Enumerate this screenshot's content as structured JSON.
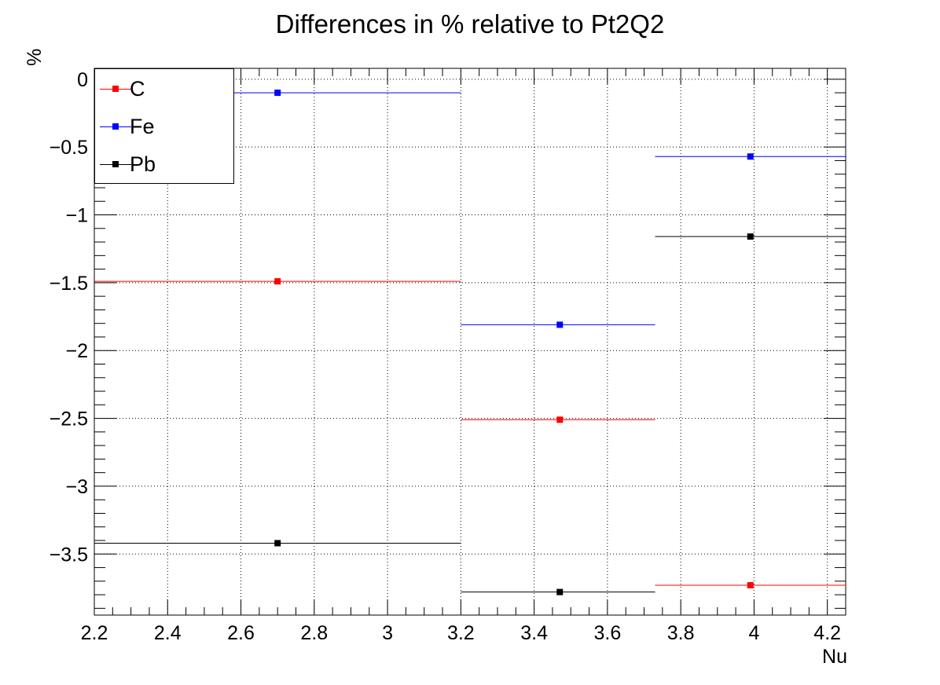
{
  "chart_data": {
    "type": "scatter",
    "title": "Differences in % relative to Pt2Q2",
    "xlabel": "Nu",
    "ylabel": "%",
    "xlim": [
      2.2,
      4.25
    ],
    "ylim": [
      -3.95,
      0.08
    ],
    "x_ticks": [
      "2.2",
      "2.4",
      "2.6",
      "2.8",
      "3",
      "3.2",
      "3.4",
      "3.6",
      "3.8",
      "4",
      "4.2"
    ],
    "y_ticks": [
      "0",
      "−0.5",
      "−1",
      "−1.5",
      "−2",
      "−2.5",
      "−3",
      "−3.5"
    ],
    "grid": true,
    "legend_position": "top-left",
    "bins": [
      {
        "low": 2.2,
        "high": 3.2,
        "center": 2.7
      },
      {
        "low": 3.2,
        "high": 3.73,
        "center": 3.47
      },
      {
        "low": 3.73,
        "high": 4.25,
        "center": 3.99
      }
    ],
    "series": [
      {
        "name": "C",
        "color": "#ff0000",
        "values": [
          -1.49,
          -2.51,
          -3.73
        ]
      },
      {
        "name": "Fe",
        "color": "#0000ff",
        "values": [
          -0.1,
          -1.81,
          -0.57
        ]
      },
      {
        "name": "Pb",
        "color": "#000000",
        "values": [
          -3.42,
          -3.78,
          -1.16
        ]
      }
    ]
  }
}
